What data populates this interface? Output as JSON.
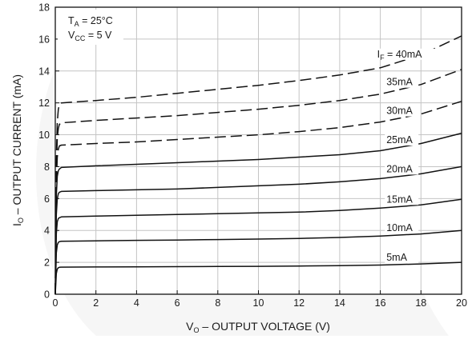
{
  "chart_data": {
    "type": "line",
    "title": "",
    "xlabel": {
      "main": "V",
      "sub": "O",
      "rest": " – OUTPUT VOLTAGE (V)"
    },
    "ylabel": {
      "main": "I",
      "sub": "O",
      "rest": " – OUTPUT CURRENT (mA)"
    },
    "xlim": [
      0,
      20
    ],
    "ylim": [
      0,
      18
    ],
    "xticks": [
      0,
      2,
      4,
      6,
      8,
      10,
      12,
      14,
      16,
      18,
      20
    ],
    "yticks": [
      0,
      2,
      4,
      6,
      8,
      10,
      12,
      14,
      16,
      18
    ],
    "grid": true,
    "conditions": [
      {
        "main": "T",
        "sub": "A",
        "rest": " = 25°C"
      },
      {
        "main": "V",
        "sub": "CC",
        "rest": " = 5 V"
      }
    ],
    "series": [
      {
        "label_main": "I",
        "label_sub": "F",
        "label_rest": " = 40mA",
        "style": "dashed",
        "points": [
          [
            0,
            0
          ],
          [
            0.05,
            8.5
          ],
          [
            0.1,
            10.8
          ],
          [
            0.15,
            11.6
          ],
          [
            0.2,
            11.9
          ],
          [
            0.3,
            12.0
          ],
          [
            2,
            12.15
          ],
          [
            4,
            12.35
          ],
          [
            6,
            12.6
          ],
          [
            8,
            12.85
          ],
          [
            10,
            13.1
          ],
          [
            12,
            13.4
          ],
          [
            14,
            13.75
          ],
          [
            16,
            14.2
          ],
          [
            18,
            15.0
          ],
          [
            20,
            16.2
          ]
        ]
      },
      {
        "label_main": "",
        "label_sub": "",
        "label_rest": "35mA",
        "style": "dashed",
        "points": [
          [
            0,
            0
          ],
          [
            0.05,
            7.8
          ],
          [
            0.1,
            9.8
          ],
          [
            0.15,
            10.4
          ],
          [
            0.2,
            10.65
          ],
          [
            0.3,
            10.75
          ],
          [
            2,
            10.9
          ],
          [
            4,
            11.05
          ],
          [
            6,
            11.2
          ],
          [
            8,
            11.4
          ],
          [
            10,
            11.6
          ],
          [
            12,
            11.85
          ],
          [
            14,
            12.15
          ],
          [
            16,
            12.55
          ],
          [
            18,
            13.15
          ],
          [
            20,
            14.1
          ]
        ]
      },
      {
        "label_main": "",
        "label_sub": "",
        "label_rest": "30mA",
        "style": "dashed",
        "points": [
          [
            0,
            0
          ],
          [
            0.05,
            7.0
          ],
          [
            0.1,
            8.6
          ],
          [
            0.15,
            9.1
          ],
          [
            0.2,
            9.3
          ],
          [
            0.3,
            9.35
          ],
          [
            2,
            9.45
          ],
          [
            4,
            9.55
          ],
          [
            6,
            9.7
          ],
          [
            8,
            9.85
          ],
          [
            10,
            10.0
          ],
          [
            12,
            10.2
          ],
          [
            14,
            10.45
          ],
          [
            16,
            10.8
          ],
          [
            18,
            11.3
          ],
          [
            20,
            12.1
          ]
        ]
      },
      {
        "label_main": "",
        "label_sub": "",
        "label_rest": "25mA",
        "style": "solid",
        "points": [
          [
            0,
            0
          ],
          [
            0.05,
            6.2
          ],
          [
            0.1,
            7.4
          ],
          [
            0.15,
            7.75
          ],
          [
            0.2,
            7.85
          ],
          [
            0.3,
            7.95
          ],
          [
            2,
            8.05
          ],
          [
            4,
            8.15
          ],
          [
            6,
            8.25
          ],
          [
            8,
            8.35
          ],
          [
            10,
            8.45
          ],
          [
            12,
            8.6
          ],
          [
            14,
            8.75
          ],
          [
            16,
            9.0
          ],
          [
            18,
            9.45
          ],
          [
            20,
            10.1
          ]
        ]
      },
      {
        "label_main": "",
        "label_sub": "",
        "label_rest": "20mA",
        "style": "solid",
        "points": [
          [
            0,
            0
          ],
          [
            0.05,
            5.0
          ],
          [
            0.1,
            6.0
          ],
          [
            0.15,
            6.3
          ],
          [
            0.2,
            6.4
          ],
          [
            0.3,
            6.45
          ],
          [
            2,
            6.5
          ],
          [
            4,
            6.55
          ],
          [
            6,
            6.6
          ],
          [
            8,
            6.7
          ],
          [
            10,
            6.8
          ],
          [
            12,
            6.9
          ],
          [
            14,
            7.05
          ],
          [
            16,
            7.25
          ],
          [
            18,
            7.55
          ],
          [
            20,
            8.0
          ]
        ]
      },
      {
        "label_main": "",
        "label_sub": "",
        "label_rest": "15mA",
        "style": "solid",
        "points": [
          [
            0,
            0
          ],
          [
            0.05,
            3.8
          ],
          [
            0.1,
            4.55
          ],
          [
            0.15,
            4.75
          ],
          [
            0.2,
            4.8
          ],
          [
            0.3,
            4.85
          ],
          [
            2,
            4.9
          ],
          [
            4,
            4.95
          ],
          [
            6,
            5.0
          ],
          [
            8,
            5.05
          ],
          [
            10,
            5.1
          ],
          [
            12,
            5.15
          ],
          [
            14,
            5.25
          ],
          [
            16,
            5.4
          ],
          [
            18,
            5.6
          ],
          [
            20,
            5.95
          ]
        ]
      },
      {
        "label_main": "",
        "label_sub": "",
        "label_rest": "10mA",
        "style": "solid",
        "points": [
          [
            0,
            0
          ],
          [
            0.05,
            2.6
          ],
          [
            0.1,
            3.1
          ],
          [
            0.15,
            3.25
          ],
          [
            0.2,
            3.3
          ],
          [
            0.3,
            3.32
          ],
          [
            2,
            3.35
          ],
          [
            4,
            3.38
          ],
          [
            6,
            3.4
          ],
          [
            8,
            3.43
          ],
          [
            10,
            3.46
          ],
          [
            12,
            3.5
          ],
          [
            14,
            3.56
          ],
          [
            16,
            3.65
          ],
          [
            18,
            3.78
          ],
          [
            20,
            4.0
          ]
        ]
      },
      {
        "label_main": "",
        "label_sub": "",
        "label_rest": "5mA",
        "style": "solid",
        "points": [
          [
            0,
            0
          ],
          [
            0.05,
            1.3
          ],
          [
            0.1,
            1.58
          ],
          [
            0.15,
            1.66
          ],
          [
            0.2,
            1.69
          ],
          [
            0.3,
            1.7
          ],
          [
            2,
            1.71
          ],
          [
            4,
            1.72
          ],
          [
            6,
            1.73
          ],
          [
            8,
            1.74
          ],
          [
            10,
            1.75
          ],
          [
            12,
            1.77
          ],
          [
            14,
            1.79
          ],
          [
            16,
            1.83
          ],
          [
            18,
            1.9
          ],
          [
            20,
            2.0
          ]
        ]
      }
    ]
  }
}
